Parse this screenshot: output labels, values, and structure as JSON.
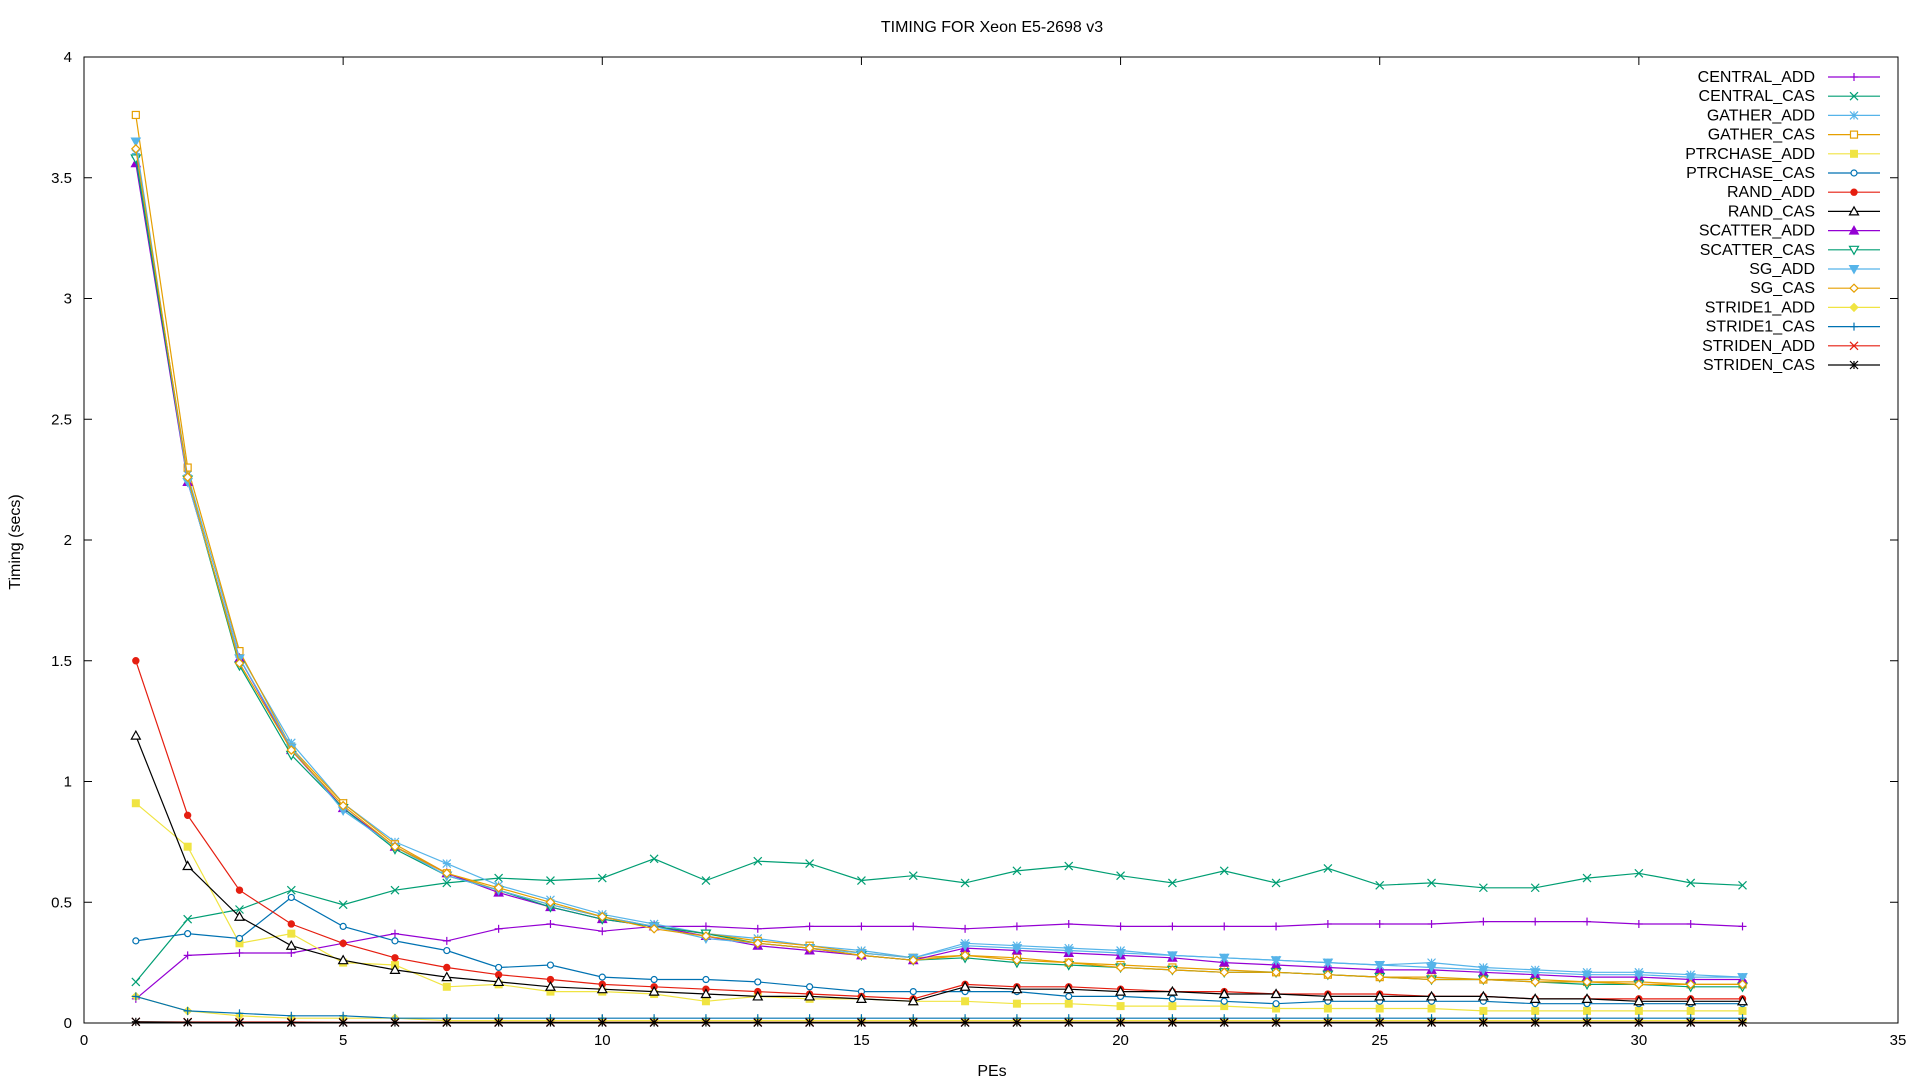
{
  "chart_data": {
    "type": "line",
    "title": "TIMING FOR Xeon E5-2698 v3",
    "xlabel": "PEs",
    "ylabel": "Timing (secs)",
    "xlim": [
      0,
      35
    ],
    "ylim": [
      0,
      4
    ],
    "xticks": [
      0,
      5,
      10,
      15,
      20,
      25,
      30,
      35
    ],
    "yticks": [
      0,
      0.5,
      1,
      1.5,
      2,
      2.5,
      3,
      3.5,
      4
    ],
    "grid": false,
    "legend_position": "top-right",
    "x": [
      1,
      2,
      3,
      4,
      5,
      6,
      7,
      8,
      9,
      10,
      11,
      12,
      13,
      14,
      15,
      16,
      17,
      18,
      19,
      20,
      21,
      22,
      23,
      24,
      25,
      26,
      27,
      28,
      29,
      30,
      31,
      32
    ],
    "series": [
      {
        "name": "CENTRAL_ADD",
        "color": "#9400d3",
        "marker": "plus",
        "values": [
          0.1,
          0.28,
          0.29,
          0.29,
          0.33,
          0.37,
          0.34,
          0.39,
          0.41,
          0.38,
          0.4,
          0.4,
          0.39,
          0.4,
          0.4,
          0.4,
          0.39,
          0.4,
          0.41,
          0.4,
          0.4,
          0.4,
          0.4,
          0.41,
          0.41,
          0.41,
          0.42,
          0.42,
          0.42,
          0.41,
          0.41,
          0.4
        ]
      },
      {
        "name": "CENTRAL_CAS",
        "color": "#009e73",
        "marker": "cross",
        "values": [
          0.17,
          0.43,
          0.47,
          0.55,
          0.49,
          0.55,
          0.58,
          0.6,
          0.59,
          0.6,
          0.68,
          0.59,
          0.67,
          0.66,
          0.59,
          0.61,
          0.58,
          0.63,
          0.65,
          0.61,
          0.58,
          0.63,
          0.58,
          0.64,
          0.57,
          0.58,
          0.56,
          0.56,
          0.6,
          0.62,
          0.58,
          0.57
        ]
      },
      {
        "name": "GATHER_ADD",
        "color": "#56b4e9",
        "marker": "star",
        "values": [
          3.6,
          2.27,
          1.53,
          1.16,
          0.91,
          0.75,
          0.66,
          0.57,
          0.51,
          0.45,
          0.41,
          0.37,
          0.35,
          0.32,
          0.3,
          0.27,
          0.33,
          0.32,
          0.31,
          0.3,
          0.28,
          0.27,
          0.26,
          0.25,
          0.24,
          0.25,
          0.23,
          0.22,
          0.21,
          0.21,
          0.2,
          0.19
        ]
      },
      {
        "name": "GATHER_CAS",
        "color": "#e69f00",
        "marker": "square-open",
        "values": [
          3.76,
          2.3,
          1.54,
          1.14,
          0.91,
          0.74,
          0.62,
          0.55,
          0.49,
          0.44,
          0.4,
          0.37,
          0.34,
          0.32,
          0.29,
          0.27,
          0.28,
          0.27,
          0.25,
          0.24,
          0.23,
          0.22,
          0.21,
          0.2,
          0.19,
          0.19,
          0.18,
          0.18,
          0.17,
          0.17,
          0.16,
          0.16
        ]
      },
      {
        "name": "PTRCHASE_ADD",
        "color": "#f0e442",
        "marker": "square-filled",
        "values": [
          0.91,
          0.73,
          0.33,
          0.37,
          0.25,
          0.24,
          0.15,
          0.16,
          0.13,
          0.13,
          0.12,
          0.09,
          0.11,
          0.1,
          0.1,
          0.09,
          0.09,
          0.08,
          0.08,
          0.07,
          0.07,
          0.07,
          0.06,
          0.06,
          0.06,
          0.06,
          0.05,
          0.05,
          0.05,
          0.05,
          0.05,
          0.05
        ]
      },
      {
        "name": "PTRCHASE_CAS",
        "color": "#0072b2",
        "marker": "circle-open",
        "values": [
          0.34,
          0.37,
          0.35,
          0.52,
          0.4,
          0.34,
          0.3,
          0.23,
          0.24,
          0.19,
          0.18,
          0.18,
          0.17,
          0.15,
          0.13,
          0.13,
          0.13,
          0.13,
          0.11,
          0.11,
          0.1,
          0.09,
          0.08,
          0.09,
          0.09,
          0.09,
          0.09,
          0.08,
          0.08,
          0.08,
          0.08,
          0.08
        ]
      },
      {
        "name": "RAND_ADD",
        "color": "#e51e10",
        "marker": "circle-filled",
        "values": [
          1.5,
          0.86,
          0.55,
          0.41,
          0.33,
          0.27,
          0.23,
          0.2,
          0.18,
          0.16,
          0.15,
          0.14,
          0.13,
          0.12,
          0.11,
          0.1,
          0.16,
          0.15,
          0.15,
          0.14,
          0.13,
          0.13,
          0.12,
          0.12,
          0.12,
          0.11,
          0.11,
          0.1,
          0.1,
          0.1,
          0.1,
          0.1
        ]
      },
      {
        "name": "RAND_CAS",
        "color": "#000000",
        "marker": "triangle-open",
        "values": [
          1.19,
          0.65,
          0.44,
          0.32,
          0.26,
          0.22,
          0.19,
          0.17,
          0.15,
          0.14,
          0.13,
          0.12,
          0.11,
          0.11,
          0.1,
          0.09,
          0.15,
          0.14,
          0.14,
          0.13,
          0.13,
          0.12,
          0.12,
          0.11,
          0.11,
          0.11,
          0.11,
          0.1,
          0.1,
          0.09,
          0.09,
          0.09
        ]
      },
      {
        "name": "SCATTER_ADD",
        "color": "#9400d3",
        "marker": "triangle-filled",
        "values": [
          3.56,
          2.24,
          1.51,
          1.13,
          0.89,
          0.73,
          0.62,
          0.54,
          0.48,
          0.43,
          0.4,
          0.36,
          0.32,
          0.3,
          0.28,
          0.26,
          0.31,
          0.3,
          0.29,
          0.28,
          0.27,
          0.25,
          0.24,
          0.23,
          0.22,
          0.22,
          0.21,
          0.2,
          0.19,
          0.19,
          0.18,
          0.18
        ]
      },
      {
        "name": "SCATTER_CAS",
        "color": "#009e73",
        "marker": "triangle-down-open",
        "values": [
          3.58,
          2.25,
          1.48,
          1.11,
          0.89,
          0.72,
          0.61,
          0.55,
          0.48,
          0.43,
          0.4,
          0.37,
          0.33,
          0.31,
          0.28,
          0.26,
          0.27,
          0.25,
          0.24,
          0.23,
          0.22,
          0.21,
          0.21,
          0.2,
          0.19,
          0.18,
          0.18,
          0.17,
          0.16,
          0.16,
          0.15,
          0.15
        ]
      },
      {
        "name": "SG_ADD",
        "color": "#56b4e9",
        "marker": "triangle-down-filled",
        "values": [
          3.65,
          2.24,
          1.51,
          1.14,
          0.88,
          0.73,
          0.61,
          0.55,
          0.49,
          0.44,
          0.4,
          0.35,
          0.33,
          0.31,
          0.29,
          0.27,
          0.32,
          0.31,
          0.3,
          0.29,
          0.28,
          0.27,
          0.26,
          0.25,
          0.24,
          0.23,
          0.22,
          0.21,
          0.2,
          0.2,
          0.19,
          0.19
        ]
      },
      {
        "name": "SG_CAS",
        "color": "#e69f00",
        "marker": "diamond-open",
        "values": [
          3.62,
          2.26,
          1.49,
          1.13,
          0.9,
          0.73,
          0.62,
          0.56,
          0.5,
          0.44,
          0.39,
          0.36,
          0.33,
          0.31,
          0.28,
          0.26,
          0.28,
          0.26,
          0.25,
          0.23,
          0.22,
          0.21,
          0.21,
          0.2,
          0.19,
          0.18,
          0.18,
          0.17,
          0.17,
          0.16,
          0.16,
          0.16
        ]
      },
      {
        "name": "STRIDE1_ADD",
        "color": "#f0e442",
        "marker": "diamond-filled",
        "values": [
          0.11,
          0.05,
          0.03,
          0.02,
          0.02,
          0.02,
          0.01,
          0.01,
          0.01,
          0.01,
          0.01,
          0.01,
          0.01,
          0.01,
          0.01,
          0.01,
          0.01,
          0.01,
          0.01,
          0.01,
          0.01,
          0.01,
          0.01,
          0.01,
          0.01,
          0.01,
          0.01,
          0.01,
          0.01,
          0.01,
          0.01,
          0.01
        ]
      },
      {
        "name": "STRIDE1_CAS",
        "color": "#0072b2",
        "marker": "plus",
        "values": [
          0.11,
          0.05,
          0.04,
          0.03,
          0.03,
          0.02,
          0.02,
          0.02,
          0.02,
          0.02,
          0.02,
          0.02,
          0.02,
          0.02,
          0.02,
          0.02,
          0.02,
          0.02,
          0.02,
          0.02,
          0.02,
          0.02,
          0.02,
          0.02,
          0.02,
          0.02,
          0.02,
          0.02,
          0.02,
          0.02,
          0.02,
          0.02
        ]
      },
      {
        "name": "STRIDEN_ADD",
        "color": "#e51e10",
        "marker": "cross",
        "values": [
          0.005,
          0.004,
          0.004,
          0.004,
          0.003,
          0.003,
          0.003,
          0.003,
          0.003,
          0.003,
          0.003,
          0.003,
          0.003,
          0.003,
          0.003,
          0.003,
          0.003,
          0.003,
          0.003,
          0.003,
          0.003,
          0.003,
          0.003,
          0.003,
          0.003,
          0.003,
          0.003,
          0.003,
          0.003,
          0.003,
          0.003,
          0.003
        ]
      },
      {
        "name": "STRIDEN_CAS",
        "color": "#000000",
        "marker": "star",
        "values": [
          0.005,
          0.003,
          0.002,
          0.002,
          0.002,
          0.002,
          0.002,
          0.002,
          0.002,
          0.002,
          0.002,
          0.002,
          0.002,
          0.002,
          0.002,
          0.002,
          0.002,
          0.002,
          0.002,
          0.002,
          0.002,
          0.002,
          0.002,
          0.002,
          0.002,
          0.002,
          0.002,
          0.002,
          0.002,
          0.002,
          0.002,
          0.002
        ]
      }
    ]
  }
}
